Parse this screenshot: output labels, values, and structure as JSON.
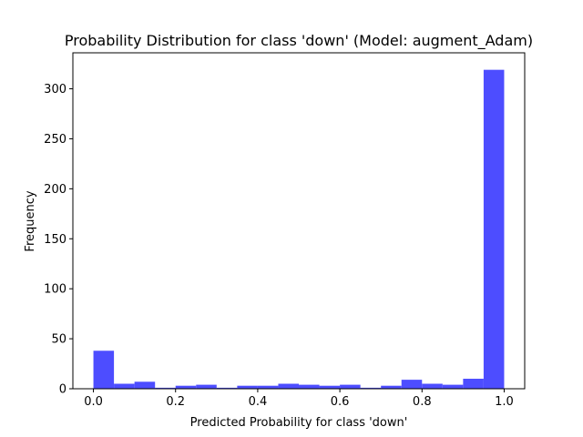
{
  "chart_data": {
    "type": "bar",
    "title": "Probability Distribution for class 'down' (Model: augment_Adam)",
    "xlabel": "Predicted Probability for class 'down'",
    "ylabel": "Frequency",
    "xlim": [
      -0.05,
      1.05
    ],
    "ylim": [
      0,
      336
    ],
    "xticks": [
      0.0,
      0.2,
      0.4,
      0.6,
      0.8,
      1.0
    ],
    "xtick_labels": [
      "0.0",
      "0.2",
      "0.4",
      "0.6",
      "0.8",
      "1.0"
    ],
    "yticks": [
      0,
      50,
      100,
      150,
      200,
      250,
      300
    ],
    "ytick_labels": [
      "0",
      "50",
      "100",
      "150",
      "200",
      "250",
      "300"
    ],
    "bin_edges": [
      0.0,
      0.05,
      0.1,
      0.15,
      0.2,
      0.25,
      0.3,
      0.35,
      0.4,
      0.45,
      0.5,
      0.55,
      0.6,
      0.65,
      0.7,
      0.75,
      0.8,
      0.85,
      0.9,
      0.95,
      1.0
    ],
    "values": [
      38,
      5,
      7,
      1,
      3,
      4,
      1,
      3,
      3,
      5,
      4,
      3,
      4,
      1,
      3,
      9,
      5,
      4,
      10,
      319
    ],
    "bar_color": "#4d4dff",
    "grid": false,
    "legend": "none"
  }
}
